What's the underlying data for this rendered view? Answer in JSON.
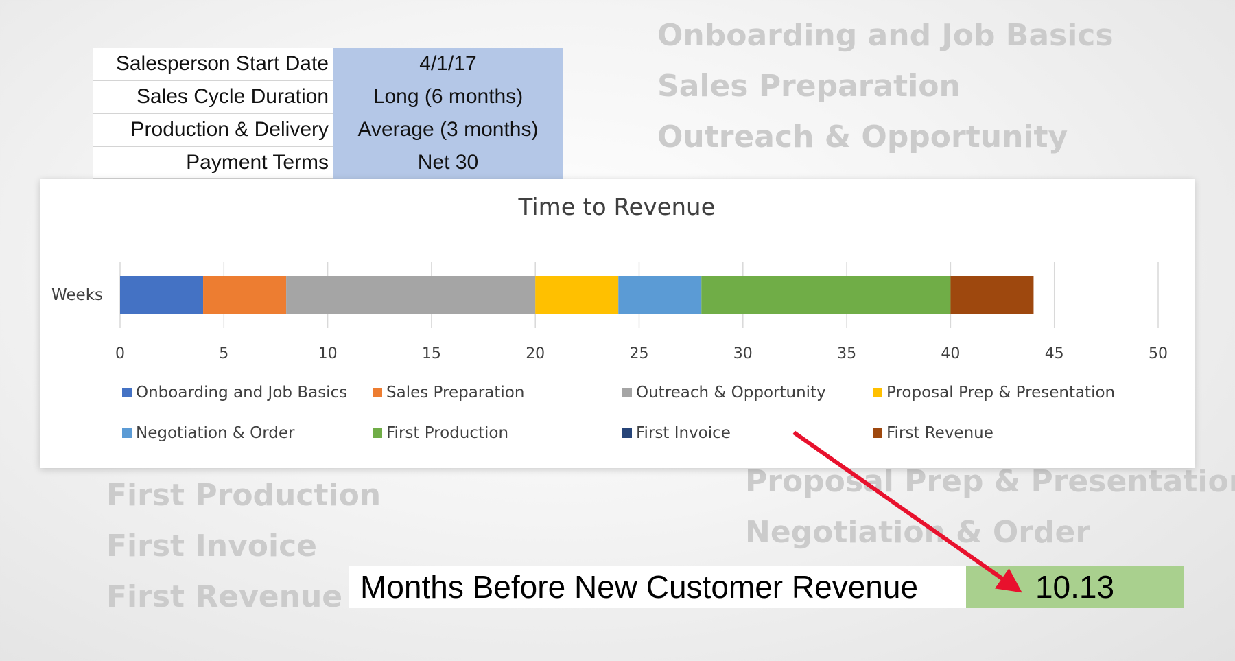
{
  "background": {
    "top_right": [
      "Onboarding and Job Basics",
      "Sales Preparation",
      "Outreach & Opportunity"
    ],
    "bottom_left": [
      "First Production",
      "First Invoice",
      "First  Revenue"
    ],
    "bottom_right": [
      "Proposal Prep & Presentation",
      "Negotiation & Order"
    ]
  },
  "params": [
    {
      "label": "Salesperson Start Date",
      "value": "4/1/17"
    },
    {
      "label": "Sales Cycle Duration",
      "value": "Long (6 months)"
    },
    {
      "label": "Production & Delivery",
      "value": "Average (3 months)"
    },
    {
      "label": "Payment Terms",
      "value": "Net 30"
    }
  ],
  "result": {
    "label": "Months Before New Customer Revenue",
    "value": "10.13"
  },
  "colors": {
    "param_fill": "#b4c7e7",
    "result_fill": "#a9d08e",
    "arrow": "#e8112d"
  },
  "chart_data": {
    "type": "bar",
    "orientation": "horizontal",
    "stacked": true,
    "title": "Time to Revenue",
    "categories": [
      "Weeks"
    ],
    "xlim": [
      0,
      50
    ],
    "xticks": [
      0,
      5,
      10,
      15,
      20,
      25,
      30,
      35,
      40,
      45,
      50
    ],
    "grid": true,
    "legend_position": "bottom",
    "series": [
      {
        "name": "Onboarding and Job Basics",
        "values": [
          4
        ],
        "color": "#4472c4"
      },
      {
        "name": "Sales Preparation",
        "values": [
          4
        ],
        "color": "#ed7d31"
      },
      {
        "name": "Outreach & Opportunity",
        "values": [
          12
        ],
        "color": "#a5a5a5"
      },
      {
        "name": "Proposal Prep & Presentation",
        "values": [
          4
        ],
        "color": "#ffc000"
      },
      {
        "name": "Negotiation & Order",
        "values": [
          4
        ],
        "color": "#5b9bd5"
      },
      {
        "name": "First Production",
        "values": [
          12
        ],
        "color": "#70ad47"
      },
      {
        "name": "First Invoice",
        "values": [
          0
        ],
        "color": "#264478"
      },
      {
        "name": "First  Revenue",
        "values": [
          4
        ],
        "color": "#9e480e"
      }
    ]
  }
}
